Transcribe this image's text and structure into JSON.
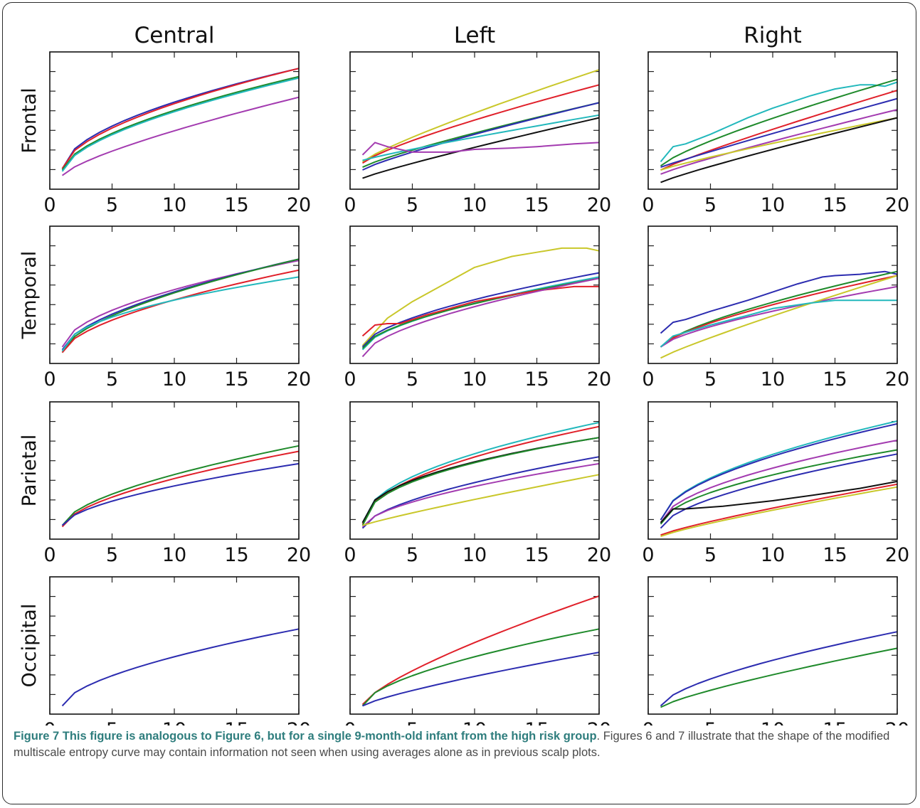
{
  "figure": {
    "column_titles": [
      "Central",
      "Left",
      "Right"
    ],
    "row_labels": [
      "Frontal",
      "Temporal",
      "Parietal",
      "Occipital"
    ],
    "caption_bold": "Figure 7 This figure is analogous to Figure 6, but for a single 9-month-old infant from the high risk group",
    "caption_text": ". Figures 6 and 7 illustrate that the shape of the modified multiscale entropy curve may contain information not seen when using averages alone as in previous scalp plots."
  },
  "colors": {
    "blue": "#2c2cb0",
    "red": "#e0202a",
    "green": "#1f8a2b",
    "cyan": "#22b8bc",
    "magenta": "#a33bb0",
    "yellow": "#c9c72a",
    "black": "#111111"
  },
  "chart_data": [
    {
      "type": "line",
      "row": "Frontal",
      "column": "Central",
      "xlim": [
        0,
        20
      ],
      "ylim": [
        0,
        1
      ],
      "x_ticks": [
        0,
        5,
        10,
        15,
        20
      ],
      "series": [
        {
          "color": "blue",
          "start": 0.15,
          "end": 0.88,
          "shape": 0.55
        },
        {
          "color": "red",
          "start": 0.15,
          "end": 0.88,
          "shape": 0.58
        },
        {
          "color": "green",
          "start": 0.14,
          "end": 0.82,
          "shape": 0.6
        },
        {
          "color": "cyan",
          "start": 0.13,
          "end": 0.81,
          "shape": 0.6
        },
        {
          "color": "magenta",
          "start": 0.1,
          "end": 0.67,
          "shape": 0.75
        }
      ]
    },
    {
      "type": "line",
      "row": "Frontal",
      "column": "Left",
      "xlim": [
        0,
        20
      ],
      "ylim": [
        0,
        1
      ],
      "x_ticks": [
        0,
        5,
        10,
        15,
        20
      ],
      "series": [
        {
          "color": "yellow",
          "start": 0.2,
          "end": 0.87,
          "shape": 0.85
        },
        {
          "color": "red",
          "start": 0.19,
          "end": 0.76,
          "shape": 0.8
        },
        {
          "color": "green",
          "start": 0.16,
          "end": 0.63,
          "shape": 0.85
        },
        {
          "color": "blue",
          "start": 0.14,
          "end": 0.63,
          "shape": 0.85
        },
        {
          "color": "cyan",
          "start": 0.21,
          "end": 0.54,
          "shape": 0.9
        },
        {
          "color": "black",
          "start": 0.08,
          "end": 0.52,
          "shape": 0.9
        },
        {
          "color": "magenta",
          "points": [
            [
              1,
              0.25
            ],
            [
              2,
              0.34
            ],
            [
              3,
              0.31
            ],
            [
              5,
              0.27
            ],
            [
              8,
              0.27
            ],
            [
              10,
              0.29
            ],
            [
              13,
              0.3
            ],
            [
              15,
              0.31
            ],
            [
              18,
              0.33
            ],
            [
              20,
              0.34
            ]
          ]
        }
      ]
    },
    {
      "type": "line",
      "row": "Frontal",
      "column": "Right",
      "xlim": [
        0,
        20
      ],
      "ylim": [
        0,
        1
      ],
      "x_ticks": [
        0,
        5,
        10,
        15,
        20
      ],
      "series": [
        {
          "color": "cyan",
          "points": [
            [
              1,
              0.2
            ],
            [
              2,
              0.31
            ],
            [
              3,
              0.33
            ],
            [
              5,
              0.4
            ],
            [
              8,
              0.52
            ],
            [
              10,
              0.59
            ],
            [
              13,
              0.68
            ],
            [
              15,
              0.73
            ],
            [
              17,
              0.76
            ],
            [
              18,
              0.76
            ],
            [
              19,
              0.75
            ],
            [
              20,
              0.78
            ]
          ]
        },
        {
          "color": "green",
          "start": 0.17,
          "end": 0.8,
          "shape": 0.8
        },
        {
          "color": "red",
          "start": 0.14,
          "end": 0.72,
          "shape": 0.9
        },
        {
          "color": "blue",
          "start": 0.16,
          "end": 0.66,
          "shape": 0.95
        },
        {
          "color": "magenta",
          "start": 0.11,
          "end": 0.58,
          "shape": 0.9
        },
        {
          "color": "yellow",
          "start": 0.14,
          "end": 0.52,
          "shape": 0.9
        },
        {
          "color": "black",
          "start": 0.05,
          "end": 0.52,
          "shape": 0.9
        }
      ]
    },
    {
      "type": "line",
      "row": "Temporal",
      "column": "Central",
      "xlim": [
        0,
        20
      ],
      "ylim": [
        0,
        1
      ],
      "x_ticks": [
        0,
        5,
        10,
        15,
        20
      ],
      "series": [
        {
          "color": "magenta",
          "start": 0.12,
          "end": 0.75,
          "shape": 0.55
        },
        {
          "color": "blue",
          "start": 0.1,
          "end": 0.76,
          "shape": 0.6
        },
        {
          "color": "green",
          "start": 0.08,
          "end": 0.76,
          "shape": 0.6
        },
        {
          "color": "red",
          "start": 0.08,
          "end": 0.68,
          "shape": 0.6
        },
        {
          "color": "cyan",
          "start": 0.09,
          "end": 0.63,
          "shape": 0.5
        }
      ]
    },
    {
      "type": "line",
      "row": "Temporal",
      "column": "Left",
      "xlim": [
        0,
        20
      ],
      "ylim": [
        0,
        1
      ],
      "x_ticks": [
        0,
        5,
        10,
        15,
        20
      ],
      "series": [
        {
          "color": "yellow",
          "points": [
            [
              1,
              0.13
            ],
            [
              3,
              0.33
            ],
            [
              5,
              0.45
            ],
            [
              8,
              0.6
            ],
            [
              10,
              0.7
            ],
            [
              13,
              0.78
            ],
            [
              15,
              0.81
            ],
            [
              17,
              0.84
            ],
            [
              19,
              0.84
            ],
            [
              20,
              0.82
            ]
          ]
        },
        {
          "color": "blue",
          "start": 0.12,
          "end": 0.66,
          "shape": 0.6
        },
        {
          "color": "cyan",
          "start": 0.1,
          "end": 0.63,
          "shape": 0.6
        },
        {
          "color": "green",
          "start": 0.11,
          "end": 0.62,
          "shape": 0.6
        },
        {
          "color": "red",
          "points": [
            [
              1,
              0.2
            ],
            [
              2,
              0.28
            ],
            [
              3,
              0.29
            ],
            [
              4,
              0.29
            ],
            [
              6,
              0.35
            ],
            [
              8,
              0.4
            ],
            [
              10,
              0.45
            ],
            [
              13,
              0.5
            ],
            [
              15,
              0.53
            ],
            [
              18,
              0.56
            ],
            [
              20,
              0.56
            ]
          ]
        },
        {
          "color": "magenta",
          "start": 0.05,
          "end": 0.62,
          "shape": 0.6
        }
      ]
    },
    {
      "type": "line",
      "row": "Temporal",
      "column": "Right",
      "xlim": [
        0,
        20
      ],
      "ylim": [
        0,
        1
      ],
      "x_ticks": [
        0,
        5,
        10,
        15,
        20
      ],
      "series": [
        {
          "color": "blue",
          "points": [
            [
              1,
              0.22
            ],
            [
              2,
              0.3
            ],
            [
              3,
              0.32
            ],
            [
              5,
              0.38
            ],
            [
              8,
              0.46
            ],
            [
              10,
              0.52
            ],
            [
              12,
              0.58
            ],
            [
              14,
              0.63
            ],
            [
              15,
              0.64
            ],
            [
              17,
              0.65
            ],
            [
              19,
              0.67
            ],
            [
              20,
              0.65
            ]
          ]
        },
        {
          "color": "green",
          "start": 0.12,
          "end": 0.67,
          "shape": 0.7
        },
        {
          "color": "red",
          "start": 0.12,
          "end": 0.64,
          "shape": 0.7
        },
        {
          "color": "magenta",
          "start": 0.12,
          "end": 0.56,
          "shape": 0.7
        },
        {
          "color": "yellow",
          "start": 0.04,
          "end": 0.64,
          "shape": 0.9
        },
        {
          "color": "cyan",
          "points": [
            [
              1,
              0.12
            ],
            [
              2,
              0.2
            ],
            [
              5,
              0.28
            ],
            [
              8,
              0.35
            ],
            [
              10,
              0.4
            ],
            [
              13,
              0.44
            ],
            [
              15,
              0.46
            ],
            [
              18,
              0.46
            ],
            [
              20,
              0.46
            ]
          ]
        }
      ]
    },
    {
      "type": "line",
      "row": "Parietal",
      "column": "Central",
      "xlim": [
        0,
        20
      ],
      "ylim": [
        0,
        1
      ],
      "x_ticks": [
        0,
        5,
        10,
        15,
        20
      ],
      "series": [
        {
          "color": "green",
          "start": 0.1,
          "end": 0.68,
          "shape": 0.6
        },
        {
          "color": "red",
          "start": 0.09,
          "end": 0.64,
          "shape": 0.6
        },
        {
          "color": "blue",
          "start": 0.1,
          "end": 0.55,
          "shape": 0.6
        }
      ]
    },
    {
      "type": "line",
      "row": "Parietal",
      "column": "Left",
      "xlim": [
        0,
        20
      ],
      "ylim": [
        0,
        1
      ],
      "x_ticks": [
        0,
        5,
        10,
        15,
        20
      ],
      "series": [
        {
          "color": "cyan",
          "start": 0.12,
          "end": 0.85,
          "shape": 0.5
        },
        {
          "color": "red",
          "start": 0.11,
          "end": 0.82,
          "shape": 0.5
        },
        {
          "color": "black",
          "start": 0.12,
          "end": 0.74,
          "shape": 0.45
        },
        {
          "color": "green",
          "start": 0.1,
          "end": 0.74,
          "shape": 0.45
        },
        {
          "color": "blue",
          "start": 0.08,
          "end": 0.6,
          "shape": 0.6
        },
        {
          "color": "magenta",
          "start": 0.09,
          "end": 0.55,
          "shape": 0.6
        },
        {
          "color": "yellow",
          "start": 0.1,
          "end": 0.47,
          "shape": 0.9
        }
      ]
    },
    {
      "type": "line",
      "row": "Parietal",
      "column": "Right",
      "xlim": [
        0,
        20
      ],
      "ylim": [
        0,
        1
      ],
      "x_ticks": [
        0,
        5,
        10,
        15,
        20
      ],
      "series": [
        {
          "color": "cyan",
          "start": 0.14,
          "end": 0.86,
          "shape": 0.55
        },
        {
          "color": "blue",
          "start": 0.14,
          "end": 0.84,
          "shape": 0.55
        },
        {
          "color": "magenta",
          "start": 0.12,
          "end": 0.72,
          "shape": 0.55
        },
        {
          "color": "green",
          "start": 0.11,
          "end": 0.65,
          "shape": 0.55
        },
        {
          "color": "blue",
          "start": 0.08,
          "end": 0.62,
          "shape": 0.6
        },
        {
          "color": "black",
          "points": [
            [
              1,
              0.12
            ],
            [
              2,
              0.22
            ],
            [
              3,
              0.22
            ],
            [
              6,
              0.24
            ],
            [
              10,
              0.28
            ],
            [
              14,
              0.33
            ],
            [
              17,
              0.37
            ],
            [
              20,
              0.42
            ]
          ]
        },
        {
          "color": "red",
          "start": 0.03,
          "end": 0.4,
          "shape": 0.85
        },
        {
          "color": "yellow",
          "start": 0.02,
          "end": 0.38,
          "shape": 0.85
        }
      ]
    },
    {
      "type": "line",
      "row": "Occipital",
      "column": "Central",
      "xlim": [
        0,
        20
      ],
      "ylim": [
        0,
        1
      ],
      "x_ticks": [
        0,
        5,
        10,
        15,
        20
      ],
      "series": [
        {
          "color": "blue",
          "start": 0.06,
          "end": 0.62,
          "shape": 0.6
        }
      ]
    },
    {
      "type": "line",
      "row": "Occipital",
      "column": "Left",
      "xlim": [
        0,
        20
      ],
      "ylim": [
        0,
        1
      ],
      "x_ticks": [
        0,
        5,
        10,
        15,
        20
      ],
      "series": [
        {
          "color": "red",
          "start": 0.07,
          "end": 0.86,
          "shape": 0.75
        },
        {
          "color": "green",
          "start": 0.06,
          "end": 0.62,
          "shape": 0.6
        },
        {
          "color": "blue",
          "start": 0.06,
          "end": 0.45,
          "shape": 0.8
        }
      ]
    },
    {
      "type": "line",
      "row": "Occipital",
      "column": "Right",
      "xlim": [
        0,
        20
      ],
      "ylim": [
        0,
        1
      ],
      "x_ticks": [
        0,
        5,
        10,
        15,
        20
      ],
      "series": [
        {
          "color": "blue",
          "start": 0.06,
          "end": 0.6,
          "shape": 0.65
        },
        {
          "color": "green",
          "start": 0.05,
          "end": 0.48,
          "shape": 0.8
        }
      ]
    }
  ]
}
